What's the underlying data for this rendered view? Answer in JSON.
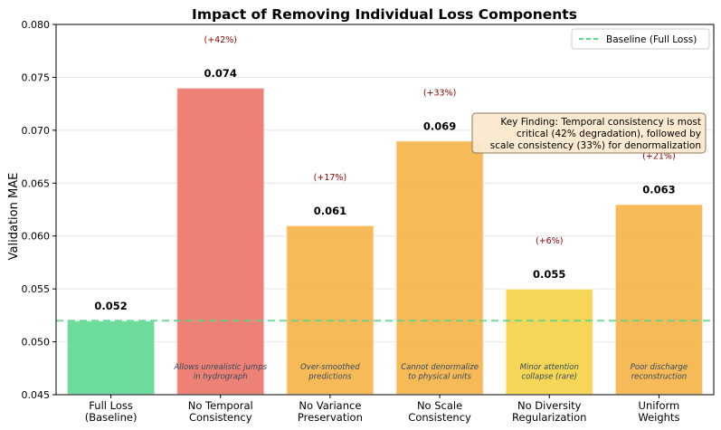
{
  "chart_data": {
    "type": "bar",
    "title": "Impact of Removing Individual Loss Components",
    "xlabel": "",
    "ylabel": "Validation MAE",
    "ylim": [
      0.045,
      0.08
    ],
    "yticks": [
      "0.045",
      "0.050",
      "0.055",
      "0.060",
      "0.065",
      "0.070",
      "0.075",
      "0.080"
    ],
    "grid": true,
    "categories": [
      [
        "Full Loss",
        "(Baseline)"
      ],
      [
        "No Temporal",
        "Consistency"
      ],
      [
        "No Variance",
        "Preservation"
      ],
      [
        "No Scale",
        "Consistency"
      ],
      [
        "No Diversity",
        "Regularization"
      ],
      [
        "Uniform",
        "Weights"
      ]
    ],
    "values": [
      0.052,
      0.074,
      0.061,
      0.069,
      0.055,
      0.063
    ],
    "value_labels": [
      "0.052",
      "0.074",
      "0.061",
      "0.069",
      "0.055",
      "0.063"
    ],
    "change_labels": [
      "",
      "(+42%)",
      "(+17%)",
      "(+33%)",
      "(+6%)",
      "(+21%)"
    ],
    "bar_colors": [
      "#58d68d",
      "#ec7063",
      "#f5b041",
      "#f5b041",
      "#f4d03f",
      "#f5b041"
    ],
    "annotations": [
      "",
      [
        "Allows unrealistic jumps",
        "in hydrograph"
      ],
      [
        "Over-smoothed",
        "predictions"
      ],
      [
        "Cannot denormalize",
        "to physical units"
      ],
      [
        "Minor attention",
        "collapse (rare)"
      ],
      [
        "Poor discharge",
        "reconstruction"
      ]
    ],
    "baseline": {
      "value": 0.052,
      "label": "Baseline (Full Loss)",
      "color": "#58d68d"
    },
    "legend_position": "top-right",
    "key_finding": [
      "Key Finding: Temporal consistency is most",
      "critical (42% degradation), followed by",
      "scale consistency (33%) for denormalization"
    ]
  }
}
